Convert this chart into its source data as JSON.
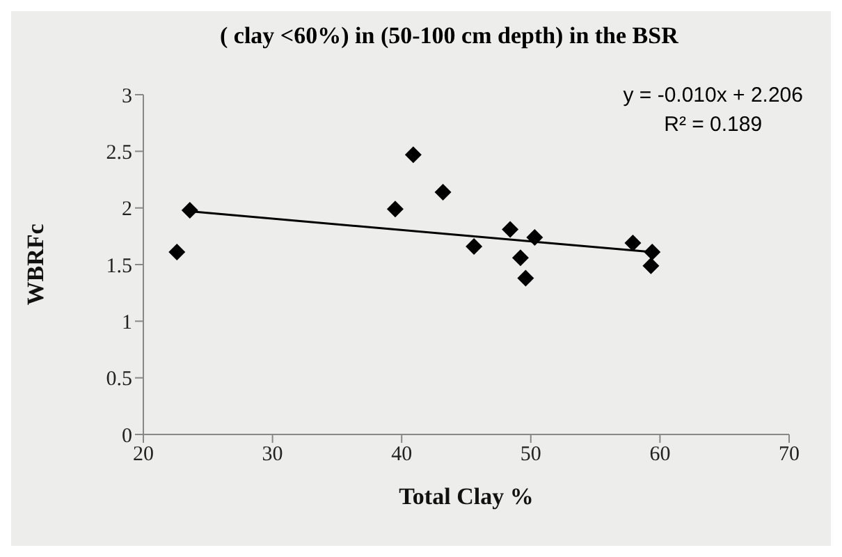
{
  "chart_data": {
    "type": "scatter",
    "title": "( clay <60%) in (50-100 cm depth) in the BSR",
    "xlabel": "Total Clay %",
    "ylabel": "WBRFc",
    "annotations": [
      "y = -0.010x + 2.206",
      "R² = 0.189"
    ],
    "xlim": [
      20,
      70
    ],
    "xticks": [
      20,
      30,
      40,
      50,
      60,
      70
    ],
    "ylim": [
      0,
      3
    ],
    "yticks": [
      0,
      0.5,
      1,
      1.5,
      2,
      2.5,
      3
    ],
    "grid": false,
    "marker": "diamond",
    "series": [
      {
        "color": "#000000",
        "x": [
          22.6,
          23.6,
          39.5,
          40.9,
          43.2,
          45.6,
          48.4,
          49.2,
          49.6,
          50.3,
          57.9,
          59.4,
          59.3
        ],
        "values": [
          1.61,
          1.98,
          1.99,
          2.47,
          2.14,
          1.66,
          1.81,
          1.56,
          1.38,
          1.74,
          1.69,
          1.61,
          1.49
        ]
      },
      {
        "type": "line",
        "color": "#000000",
        "marker": "none",
        "line_style": "solid",
        "x": [
          23.6,
          59.4
        ],
        "values": [
          1.97,
          1.61
        ]
      }
    ]
  }
}
